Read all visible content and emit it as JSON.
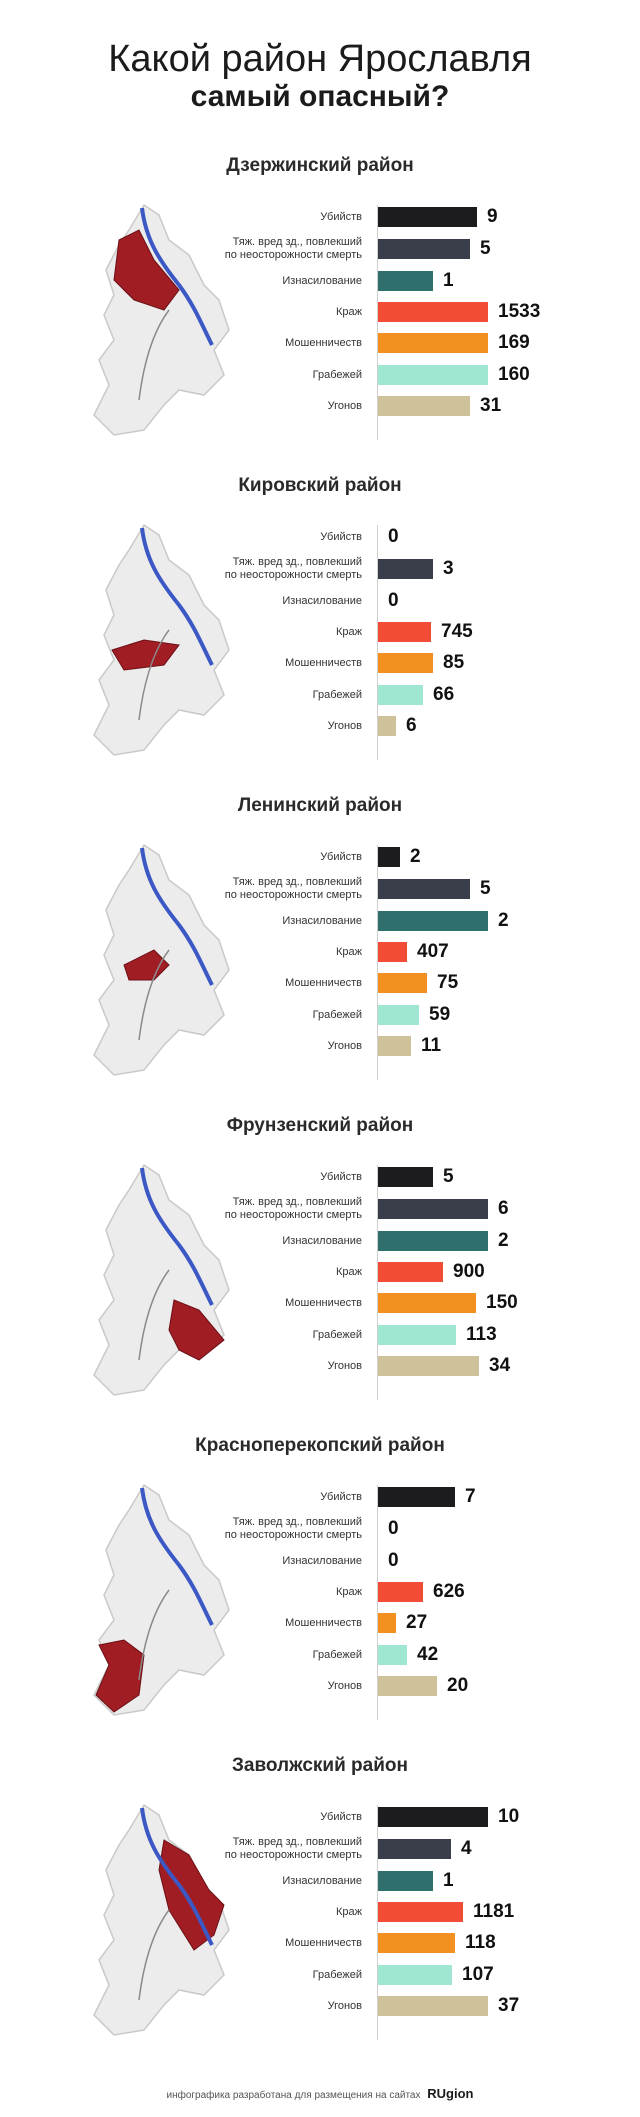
{
  "title_line1": "Какой район Ярославля",
  "title_line2": "самый опасный?",
  "colors": {
    "murders": "#1c1c1e",
    "injury": "#3a3e4a",
    "rape": "#2f6f6c",
    "theft": "#f24c34",
    "fraud": "#f29120",
    "robbery": "#9fe6d3",
    "carjack": "#cfc29a",
    "highlight": "#a01d24"
  },
  "categories": [
    "Убийств",
    "Тяж. вред зд., повлекший\nпо неосторожности смерть",
    "Изнасилование",
    "Краж",
    "Мошенничеств",
    "Грабежей",
    "Угонов"
  ],
  "chart_data": [
    {
      "type": "bar",
      "title": "Дзержинский район",
      "values": [
        9,
        5,
        1,
        1533,
        169,
        160,
        31
      ]
    },
    {
      "type": "bar",
      "title": "Кировский район",
      "values": [
        0,
        3,
        0,
        745,
        85,
        66,
        6
      ]
    },
    {
      "type": "bar",
      "title": "Ленинский район",
      "values": [
        2,
        5,
        2,
        407,
        75,
        59,
        11
      ]
    },
    {
      "type": "bar",
      "title": "Фрунзенский район",
      "values": [
        5,
        6,
        2,
        900,
        150,
        113,
        34
      ]
    },
    {
      "type": "bar",
      "title": "Красноперекопский район",
      "values": [
        7,
        0,
        0,
        626,
        27,
        42,
        20
      ]
    },
    {
      "type": "bar",
      "title": "Заволжский район",
      "values": [
        10,
        4,
        1,
        1181,
        118,
        107,
        37
      ]
    }
  ],
  "highlight_zones": [
    "north-west",
    "center-band",
    "center",
    "south-east",
    "south-west",
    "east"
  ],
  "footer_text": "инфографика разработана для размещения на сайтах",
  "footer_brand": "RUgion"
}
